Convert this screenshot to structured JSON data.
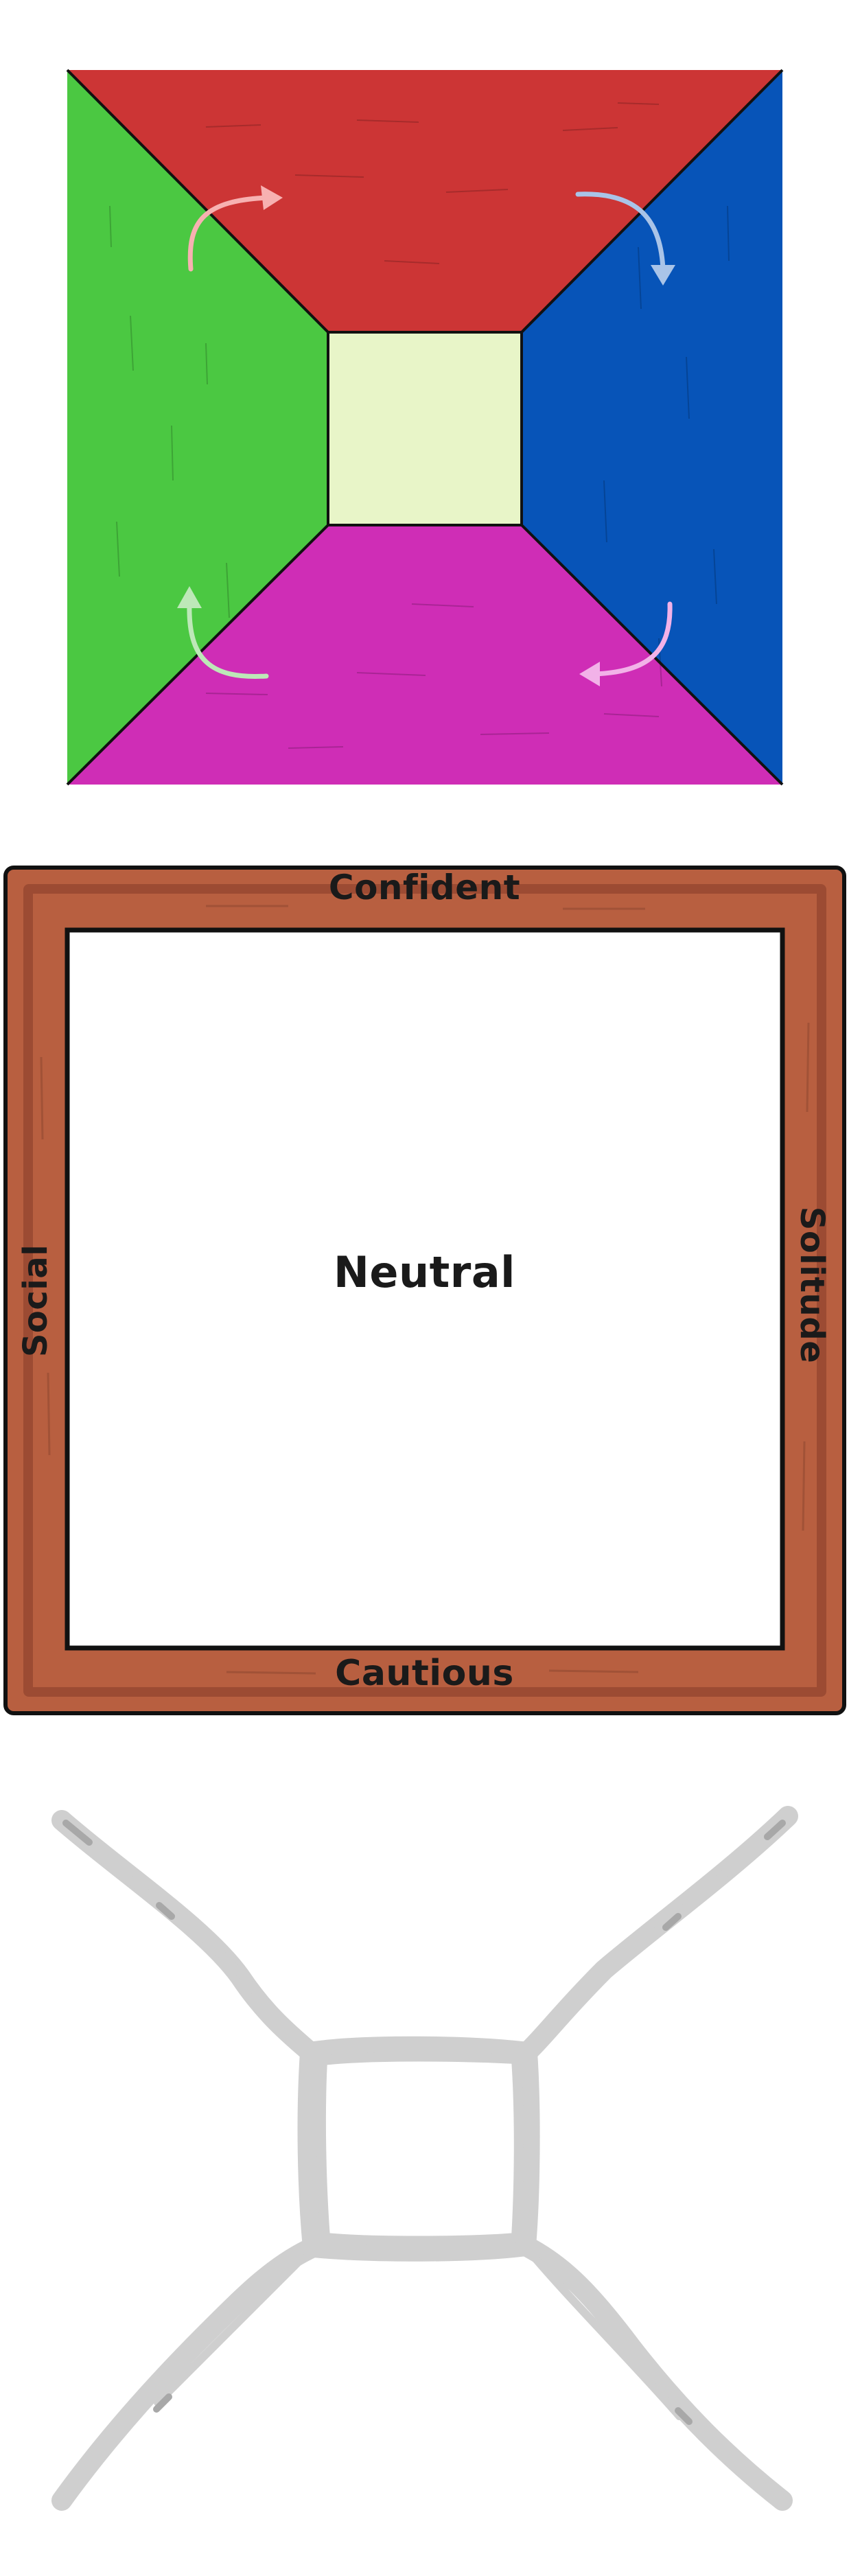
{
  "quadrants": {
    "colors": {
      "top": "#cc3535",
      "right": "#0754b8",
      "bottom": "#cf2db6",
      "left": "#4bc842",
      "center": "#e8f5c8",
      "outline": "#111111"
    },
    "arrow_colors": {
      "top_left": "#f7b1b1",
      "top_right": "#a9c4e8",
      "bottom_right": "#f2b2e8",
      "bottom_left": "#bde8b8"
    }
  },
  "frame": {
    "top_label": "Confident",
    "bottom_label": "Cautious",
    "left_label": "Social",
    "right_label": "Solitude",
    "center_label": "Neutral",
    "colors": {
      "wood": "#b85f40",
      "wood_shade": "#9c4b33",
      "inner": "#ffffff",
      "outline": "#111111"
    }
  },
  "sketch": {
    "colors": {
      "stroke": "#cfcfcf",
      "stroke_dark": "#a8a8a8"
    }
  }
}
